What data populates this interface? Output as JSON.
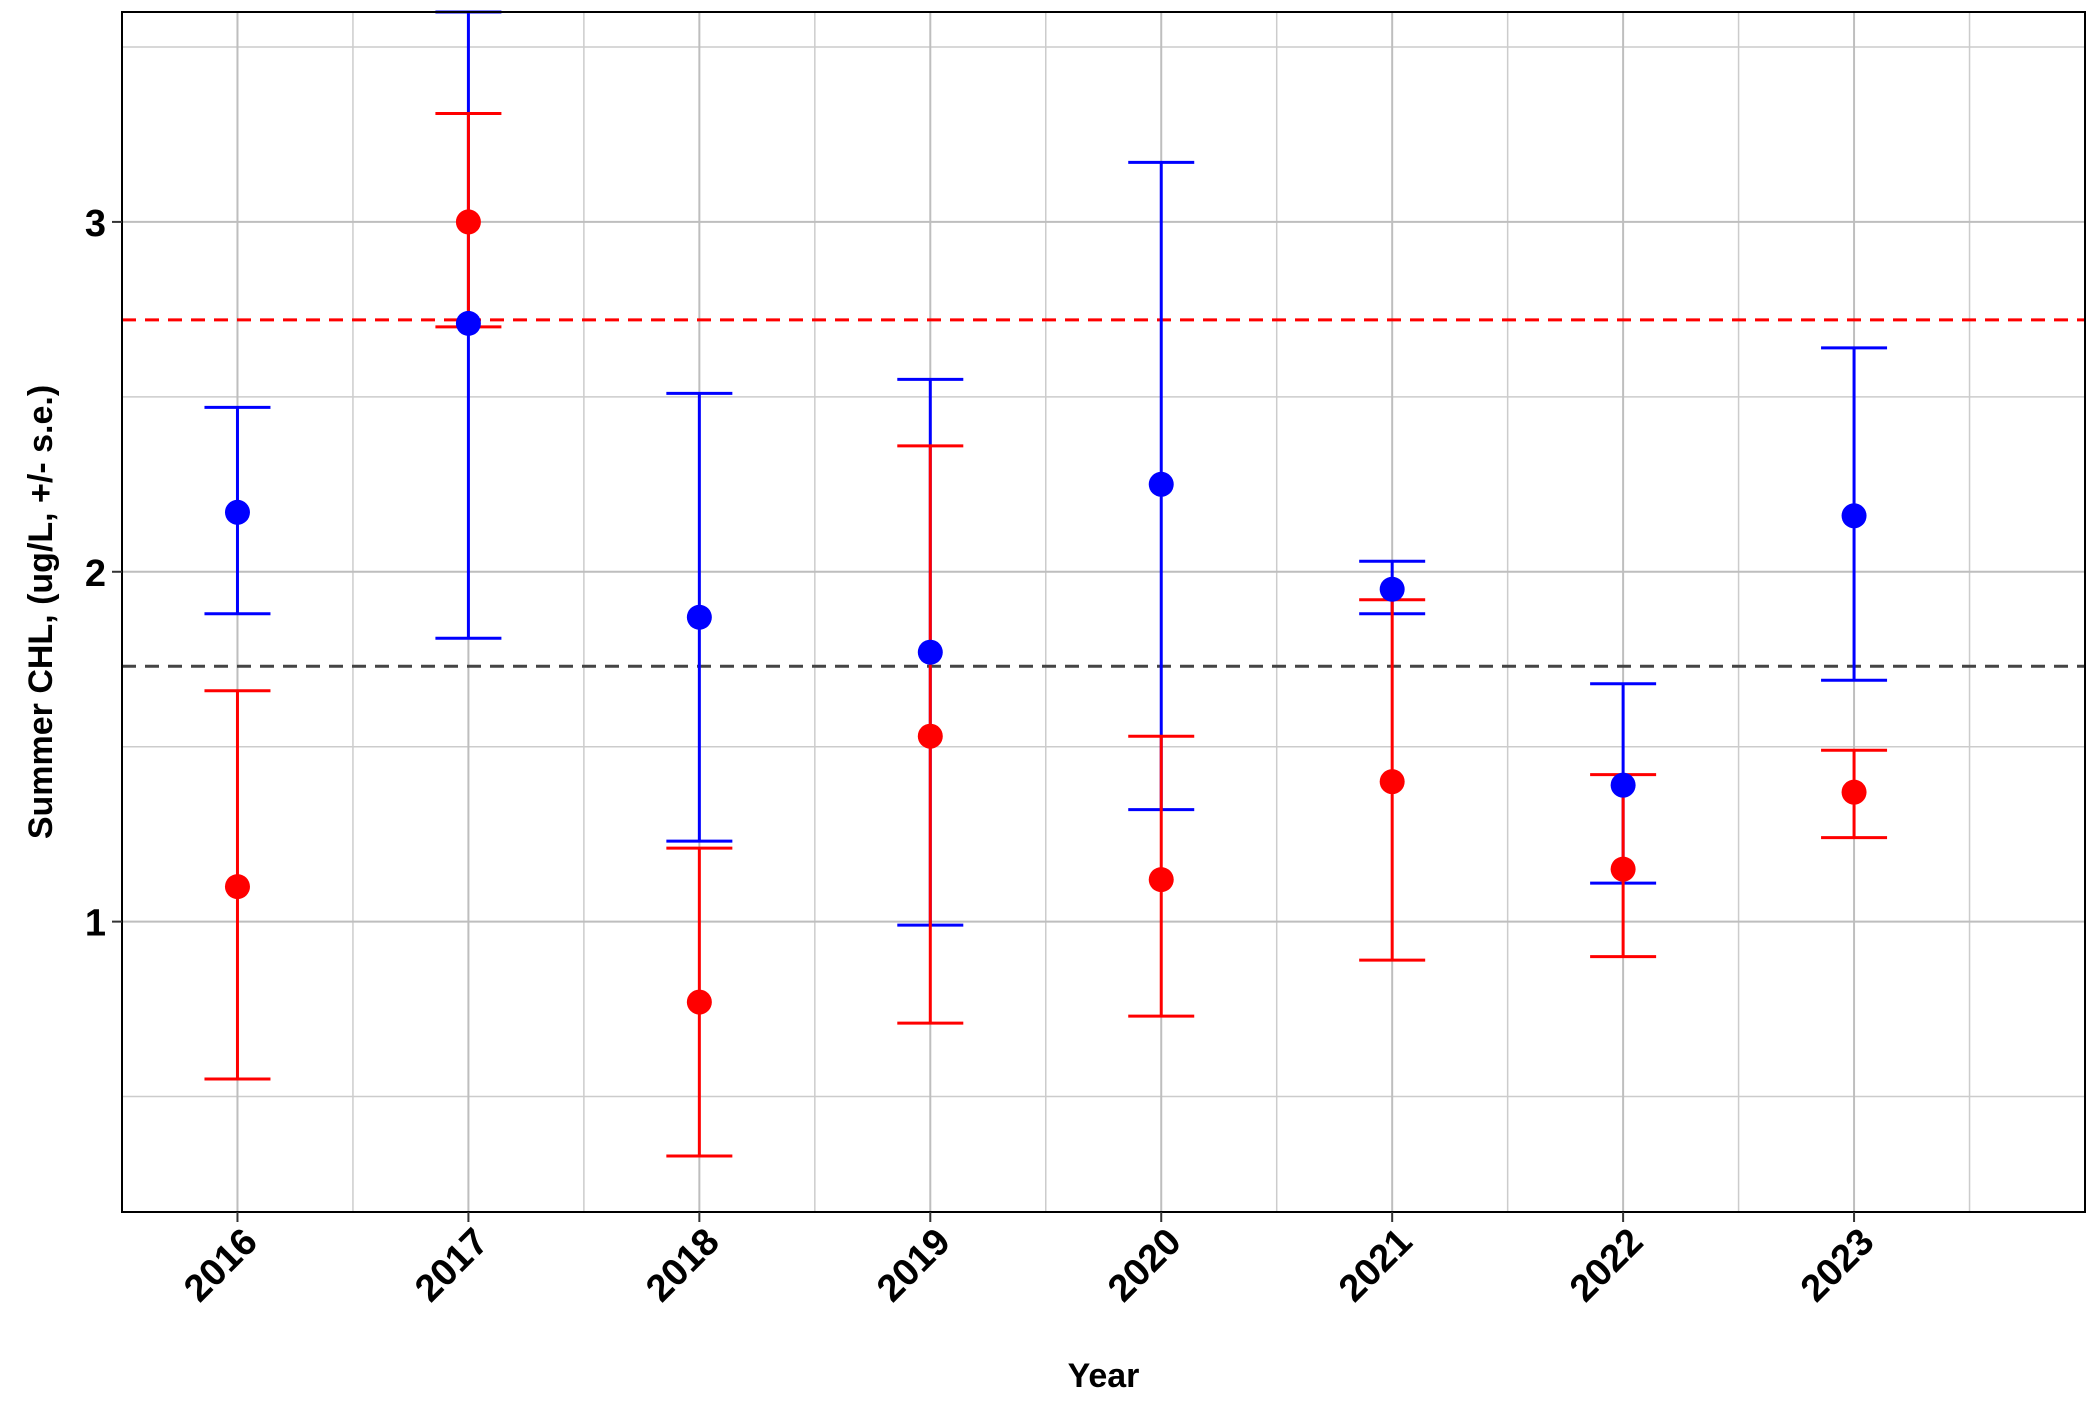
{
  "chart_data": {
    "type": "scatter",
    "title": "",
    "xlabel": "Year",
    "ylabel": "Summer CHL, (ug/L, +/- s.e.)",
    "categories": [
      "2016",
      "2017",
      "2018",
      "2019",
      "2020",
      "2021",
      "2022",
      "2023"
    ],
    "ylim": [
      0.17,
      3.6
    ],
    "yticks": [
      1,
      2,
      3
    ],
    "grid": true,
    "legend": "none",
    "series": [
      {
        "color": "#0000ff",
        "values": [
          2.17,
          2.71,
          1.87,
          1.77,
          2.25,
          1.95,
          1.39,
          2.16
        ],
        "lower": [
          1.88,
          1.81,
          1.23,
          0.99,
          1.32,
          1.88,
          1.11,
          1.69
        ],
        "upper": [
          2.47,
          3.6,
          2.51,
          2.55,
          3.17,
          2.03,
          1.68,
          2.64
        ]
      },
      {
        "color": "#ff0000",
        "values": [
          1.1,
          3.0,
          0.77,
          1.53,
          1.12,
          1.4,
          1.15,
          1.37
        ],
        "lower": [
          0.55,
          2.7,
          0.33,
          0.71,
          0.73,
          0.89,
          0.9,
          1.24
        ],
        "upper": [
          1.66,
          3.31,
          1.21,
          2.36,
          1.53,
          1.92,
          1.42,
          1.49
        ]
      }
    ],
    "reference_lines": [
      {
        "y": 2.72,
        "color": "#ff0000",
        "style": "dashed"
      },
      {
        "y": 1.73,
        "color": "#444444",
        "style": "dashed"
      }
    ]
  }
}
